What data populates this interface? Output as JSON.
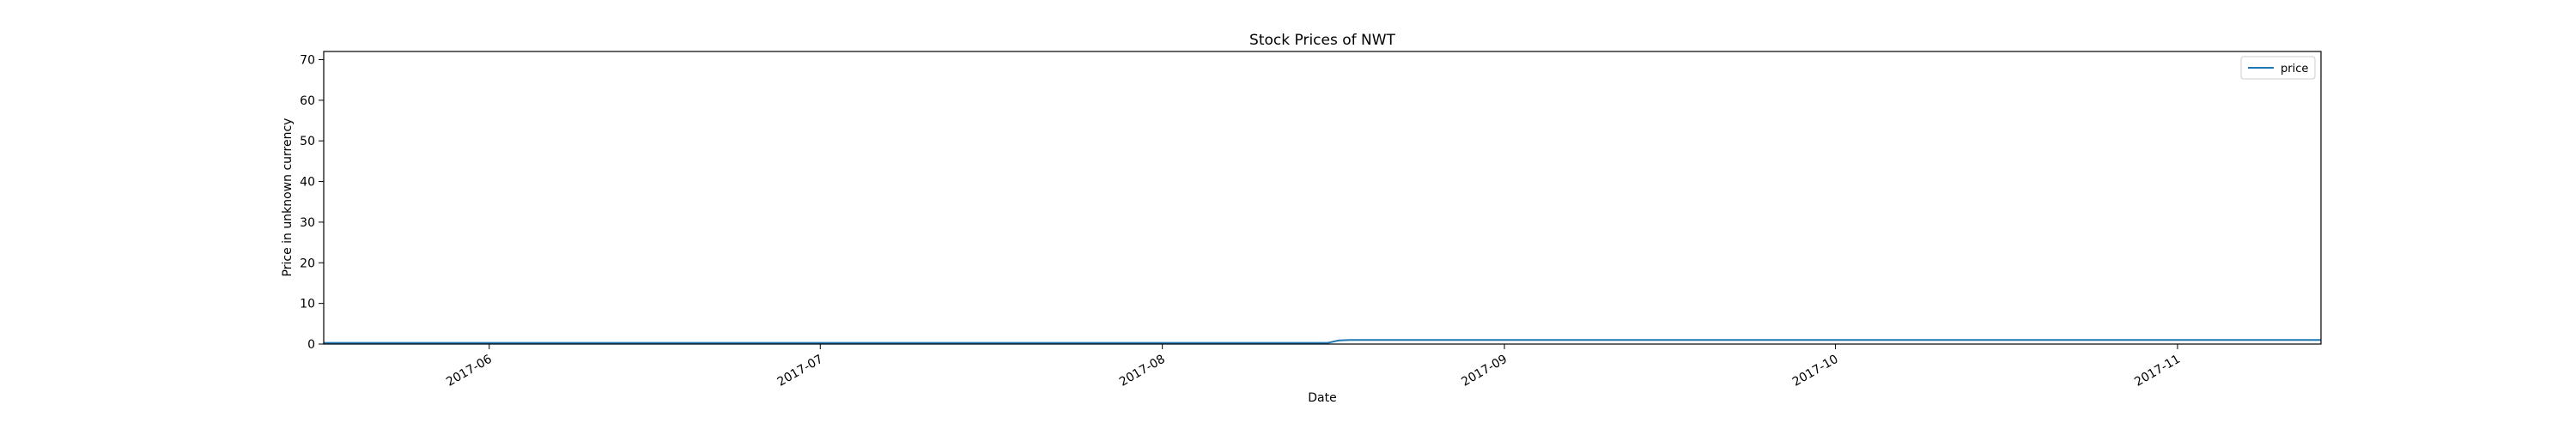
{
  "chart_data": {
    "type": "line",
    "title": "Stock Prices of NWT",
    "xlabel": "Date",
    "ylabel": "Price in unknown currency",
    "xlim": [
      "2017-05-17",
      "2017-11-14"
    ],
    "ylim": [
      0,
      72
    ],
    "yticks": [
      0,
      10,
      20,
      30,
      40,
      50,
      60,
      70
    ],
    "xticks": [
      {
        "date": "2017-06-01",
        "label": "2017-06"
      },
      {
        "date": "2017-07-01",
        "label": "2017-07"
      },
      {
        "date": "2017-08-01",
        "label": "2017-08"
      },
      {
        "date": "2017-09-01",
        "label": "2017-09"
      },
      {
        "date": "2017-10-01",
        "label": "2017-10"
      },
      {
        "date": "2017-11-01",
        "label": "2017-11"
      }
    ],
    "legend": {
      "position": "top-right",
      "entries": [
        "price"
      ]
    },
    "series": [
      {
        "name": "price",
        "color": "#1f77b4",
        "points": [
          {
            "x": "2017-05-17",
            "y": 0.3
          },
          {
            "x": "2017-08-16",
            "y": 0.3
          },
          {
            "x": "2017-08-17",
            "y": 0.9
          },
          {
            "x": "2017-08-18",
            "y": 1.0
          },
          {
            "x": "2017-11-14",
            "y": 1.0
          }
        ]
      }
    ]
  }
}
